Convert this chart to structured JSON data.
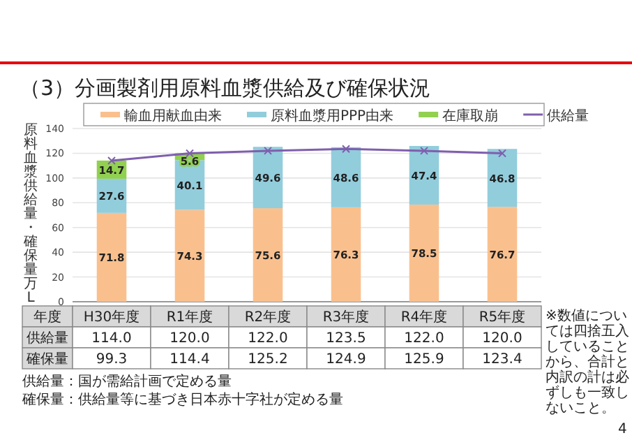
{
  "chart_data": {
    "type": "bar",
    "stacked": true,
    "title": "（3）分画製剤用原料血漿供給及び確保状況",
    "xlabel": "年度",
    "ylabel": "原料血漿供給量・確保量万L",
    "categories": [
      "H30年度",
      "R1年度",
      "R2年度",
      "R3年度",
      "R4年度",
      "R5年度"
    ],
    "series": [
      {
        "name": "輸血用献血由来",
        "color": "#f9c08e",
        "values": [
          71.8,
          74.3,
          75.6,
          76.3,
          78.5,
          76.7
        ]
      },
      {
        "name": "原料血漿用PPP由来",
        "color": "#92cddc",
        "values": [
          27.6,
          40.1,
          49.6,
          48.6,
          47.4,
          46.8
        ]
      },
      {
        "name": "在庫取崩",
        "color": "#92d050",
        "values": [
          14.7,
          5.6,
          null,
          null,
          null,
          null
        ]
      },
      {
        "name": "供給量",
        "type": "line",
        "color": "#7f5fad",
        "marker": "cross",
        "values": [
          114.0,
          120.0,
          122.0,
          123.5,
          122.0,
          120.0
        ],
        "value_labels": [
          "114.0",
          "120.0",
          "122.0",
          "123.5",
          "122.0",
          "120.0"
        ]
      }
    ],
    "ylim": [
      0,
      140
    ],
    "yticks": [
      0,
      20,
      40,
      60,
      80,
      100,
      120,
      140
    ],
    "grid": "y",
    "legend": "top",
    "data_labels": true,
    "annotations": [
      "※数値については四捨五入していることから、合計と内訳の計は必ずしも一致しないこと。",
      "供給量：国が需給計画で定める量",
      "確保量：供給量等に基づき日本赤十字社が定める量",
      "4",
      "確保量",
      "99.3",
      "114.4",
      "125.2",
      "124.9",
      "125.9",
      "123.4"
    ]
  }
}
